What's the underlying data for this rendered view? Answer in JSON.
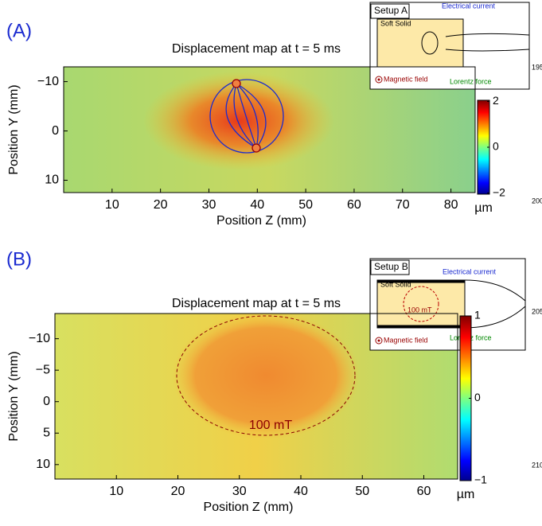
{
  "chart_data": [
    {
      "type": "heatmap",
      "panel_label": "(A)",
      "title": "Displacement map at t = 5 ms",
      "xlabel": "Position Z (mm)",
      "ylabel": "Position Y (mm)",
      "xlim": [
        0,
        85
      ],
      "ylim": [
        -13,
        12.5
      ],
      "xticks": [
        10,
        20,
        30,
        40,
        50,
        60,
        70,
        80
      ],
      "yticks": [
        {
          "value": -10,
          "label": "−10"
        },
        0,
        10
      ],
      "colorbar": {
        "lim": [
          -2.05,
          2.05
        ],
        "ticks": [
          2,
          0,
          {
            "value": -2,
            "label": "−2"
          }
        ],
        "label": "µm"
      },
      "inset": {
        "title": "Setup A",
        "texts": [
          "Soft Solid",
          "Electrical current",
          "Magnetic field",
          "Lorentz force"
        ]
      },
      "margin_numbers": [
        "195",
        "200"
      ]
    },
    {
      "type": "heatmap",
      "panel_label": "(B)",
      "title": "Displacement map at t = 5 ms",
      "xlabel": "Position Z (mm)",
      "ylabel": "Position Y (mm)",
      "xlim": [
        0,
        65.5
      ],
      "ylim": [
        -14,
        12.3
      ],
      "xticks": [
        10,
        20,
        30,
        40,
        50,
        60
      ],
      "yticks": [
        {
          "value": -10,
          "label": "−10"
        },
        {
          "value": -5,
          "label": "−5"
        },
        0,
        5,
        10
      ],
      "colorbar": {
        "lim": [
          -1,
          1
        ],
        "ticks": [
          1,
          0,
          {
            "value": -1,
            "label": "−1"
          }
        ],
        "label": "µm"
      },
      "annotation": "100 mT",
      "inset": {
        "title": "Setup B",
        "texts": [
          "Soft Solid",
          "Electrical current",
          "Magnetic field",
          "Lorentz force",
          "100 mT"
        ]
      },
      "margin_numbers": [
        "205",
        "210"
      ]
    }
  ]
}
